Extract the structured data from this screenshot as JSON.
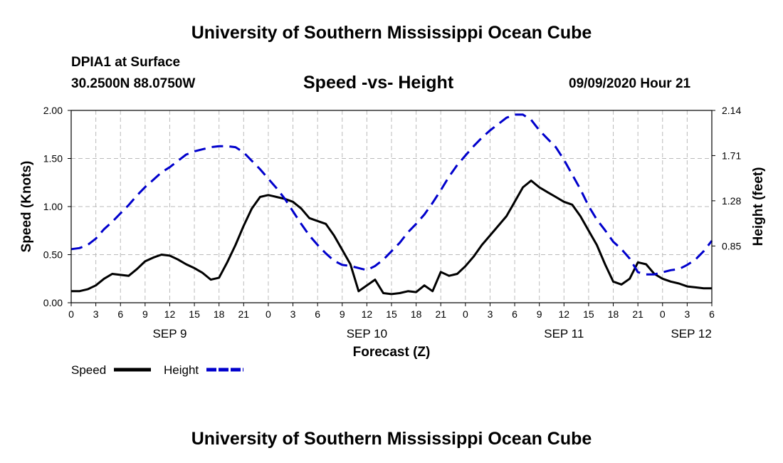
{
  "page": {
    "title_top": "University of Southern Mississippi Ocean Cube",
    "title_bottom": "University of Southern Mississippi Ocean Cube",
    "station": "DPIA1 at Surface",
    "coords": "30.2500N 88.0750W",
    "chart_title": "Speed -vs- Height",
    "datetime": "09/09/2020 Hour 21"
  },
  "chart_data": {
    "type": "line",
    "title": "Speed -vs- Height",
    "xlabel": "Forecast (Z)",
    "ylabel": "Speed (Knots)",
    "y2label": "Height (feet)",
    "ylim": [
      0,
      2.0
    ],
    "y2lim": [
      0.31,
      2.14
    ],
    "x_unit": "hours from SEP 9 00Z",
    "xlim": [
      0,
      78
    ],
    "x_ticks": [
      0,
      3,
      6,
      9,
      12,
      15,
      18,
      21,
      24,
      27,
      30,
      33,
      36,
      39,
      42,
      45,
      48,
      51,
      54,
      57,
      60,
      63,
      66,
      69,
      72,
      75,
      78
    ],
    "x_tick_labels": [
      "0",
      "3",
      "6",
      "9",
      "12",
      "15",
      "18",
      "21",
      "0",
      "3",
      "6",
      "9",
      "12",
      "15",
      "18",
      "21",
      "0",
      "3",
      "6",
      "9",
      "12",
      "15",
      "18",
      "21",
      "0",
      "3",
      "6"
    ],
    "y_ticks": [
      "0.00",
      "0.50",
      "1.00",
      "1.50",
      "2.00"
    ],
    "y_tick_values": [
      0,
      0.5,
      1.0,
      1.5,
      2.0
    ],
    "y2_ticks": [
      "0.85",
      "1.28",
      "1.71",
      "2.14"
    ],
    "y2_tick_values": [
      0.85,
      1.28,
      1.71,
      2.14
    ],
    "date_labels": [
      {
        "label": "SEP 9",
        "x": 12
      },
      {
        "label": "SEP 10",
        "x": 36
      },
      {
        "label": "SEP 11",
        "x": 60
      },
      {
        "label": "SEP 12",
        "x": 75.5
      }
    ],
    "legend": [
      {
        "name": "Speed",
        "color": "#000000",
        "dash": false
      },
      {
        "name": "Height",
        "color": "#0000cc",
        "dash": true
      }
    ],
    "series": [
      {
        "name": "Speed",
        "axis": "left",
        "color": "#000000",
        "x": [
          0,
          1,
          2,
          3,
          4,
          5,
          6,
          7,
          8,
          9,
          10,
          11,
          12,
          13,
          14,
          15,
          16,
          17,
          18,
          19,
          20,
          21,
          22,
          23,
          24,
          25,
          26,
          27,
          28,
          29,
          30,
          31,
          32,
          33,
          34,
          35,
          36,
          37,
          38,
          39,
          40,
          41,
          42,
          43,
          44,
          45,
          46,
          47,
          48,
          49,
          50,
          51,
          52,
          53,
          54,
          55,
          56,
          57,
          58,
          59,
          60,
          61,
          62,
          63,
          64,
          65,
          66,
          67,
          68,
          69,
          70,
          71,
          72,
          73,
          74,
          75,
          76,
          77,
          78
        ],
        "values": [
          0.12,
          0.12,
          0.14,
          0.18,
          0.25,
          0.3,
          0.29,
          0.28,
          0.35,
          0.43,
          0.47,
          0.5,
          0.49,
          0.45,
          0.4,
          0.36,
          0.31,
          0.24,
          0.26,
          0.42,
          0.6,
          0.8,
          0.98,
          1.1,
          1.12,
          1.1,
          1.08,
          1.05,
          0.98,
          0.88,
          0.85,
          0.82,
          0.7,
          0.55,
          0.4,
          0.12,
          0.18,
          0.24,
          0.1,
          0.09,
          0.1,
          0.12,
          0.11,
          0.18,
          0.12,
          0.32,
          0.28,
          0.3,
          0.38,
          0.48,
          0.6,
          0.7,
          0.8,
          0.9,
          1.05,
          1.2,
          1.27,
          1.2,
          1.15,
          1.1,
          1.05,
          1.02,
          0.9,
          0.75,
          0.6,
          0.4,
          0.22,
          0.19,
          0.25,
          0.42,
          0.4,
          0.3,
          0.25,
          0.22,
          0.2,
          0.17,
          0.16,
          0.15,
          0.15
        ]
      },
      {
        "name": "Height",
        "axis": "right",
        "color": "#0000cc",
        "x": [
          0,
          1,
          2,
          3,
          4,
          5,
          6,
          7,
          8,
          9,
          10,
          11,
          12,
          13,
          14,
          15,
          16,
          17,
          18,
          19,
          20,
          21,
          22,
          23,
          24,
          25,
          26,
          27,
          28,
          29,
          30,
          31,
          32,
          33,
          34,
          35,
          36,
          37,
          38,
          39,
          40,
          41,
          42,
          43,
          44,
          45,
          46,
          47,
          48,
          49,
          50,
          51,
          52,
          53,
          54,
          55,
          56,
          57,
          58,
          59,
          60,
          61,
          62,
          63,
          64,
          65,
          66,
          67,
          68,
          69,
          70,
          71,
          72,
          73,
          74,
          75,
          76,
          77,
          78
        ],
        "values": [
          0.82,
          0.83,
          0.86,
          0.92,
          1.01,
          1.08,
          1.16,
          1.24,
          1.33,
          1.41,
          1.48,
          1.55,
          1.6,
          1.66,
          1.72,
          1.75,
          1.77,
          1.79,
          1.8,
          1.8,
          1.79,
          1.74,
          1.66,
          1.58,
          1.49,
          1.4,
          1.3,
          1.18,
          1.06,
          0.95,
          0.86,
          0.78,
          0.71,
          0.67,
          0.66,
          0.64,
          0.62,
          0.66,
          0.72,
          0.8,
          0.88,
          0.98,
          1.06,
          1.15,
          1.26,
          1.38,
          1.51,
          1.62,
          1.71,
          1.8,
          1.88,
          1.95,
          2.01,
          2.07,
          2.1,
          2.1,
          2.05,
          1.95,
          1.87,
          1.79,
          1.67,
          1.53,
          1.39,
          1.23,
          1.1,
          1.0,
          0.89,
          0.82,
          0.73,
          0.6,
          0.58,
          0.58,
          0.6,
          0.62,
          0.63,
          0.67,
          0.72,
          0.8,
          0.9
        ]
      }
    ]
  }
}
